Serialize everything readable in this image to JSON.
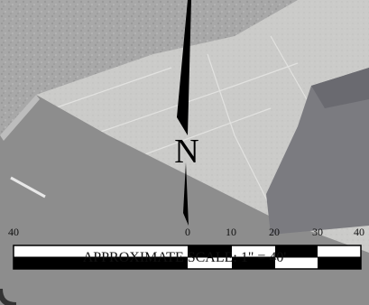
{
  "map": {
    "north_label": "N",
    "scale_ticks": [
      "40",
      "0",
      "10",
      "20",
      "30",
      "40"
    ],
    "scale_caption": "APPROXIMATE SCALE: 1\" = 40'",
    "colors": {
      "lawn_gray": "#a9a9a9",
      "sidewalk": "#c8c8c6",
      "road": "#8e8e8e",
      "roof": "#7d7d80",
      "scale_black": "#000000",
      "scale_white": "#ffffff"
    }
  }
}
